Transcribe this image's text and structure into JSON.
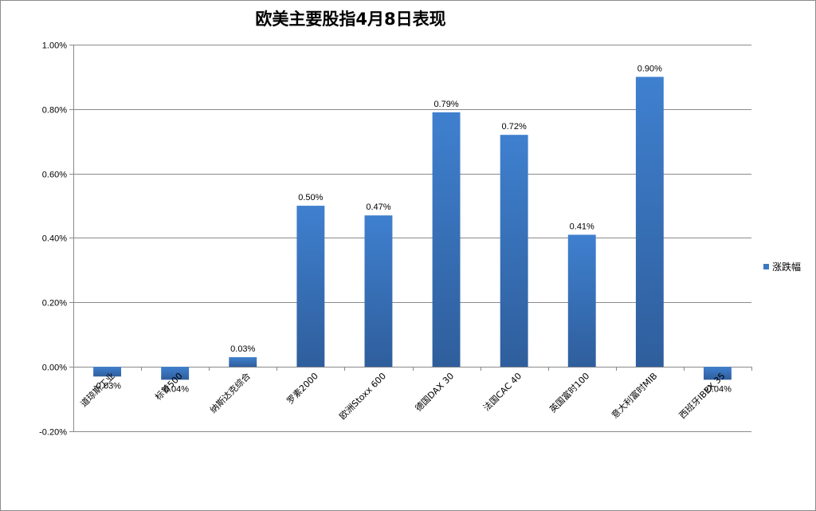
{
  "chart_data": {
    "type": "bar",
    "title": "欧美主要股指4月8日表现",
    "categories": [
      "道琼斯工业",
      "标普500",
      "纳斯达克综合",
      "罗素2000",
      "欧洲Stoxx 600",
      "德国DAX 30",
      "法国CAC 40",
      "英国富时100",
      "意大利富时MIB",
      "西班牙IBEX 35"
    ],
    "series": [
      {
        "name": "涨跌幅",
        "values": [
          -0.03,
          -0.04,
          0.03,
          0.5,
          0.47,
          0.79,
          0.72,
          0.41,
          0.9,
          -0.04
        ],
        "labels": [
          "-0.03%",
          "-0.04%",
          "0.03%",
          "0.50%",
          "0.47%",
          "0.79%",
          "0.72%",
          "0.41%",
          "0.90%",
          "-0.04%"
        ],
        "color": "#3b78c4"
      }
    ],
    "yticks": [
      -0.2,
      0.0,
      0.2,
      0.4,
      0.6,
      0.8,
      1.0
    ],
    "ytick_labels": [
      "-0.20%",
      "0.00%",
      "0.20%",
      "0.40%",
      "0.60%",
      "0.80%",
      "1.00%"
    ],
    "ylim": [
      -0.2,
      1.0
    ],
    "grid": true,
    "legend_position": "right",
    "xlabel": "",
    "ylabel": ""
  }
}
